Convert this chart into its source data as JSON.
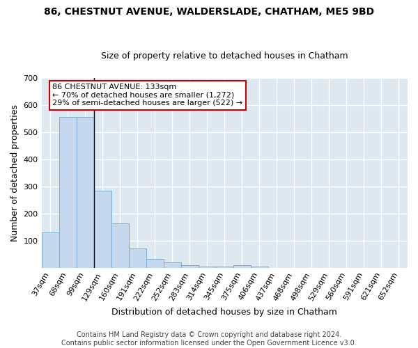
{
  "title": "86, CHESTNUT AVENUE, WALDERSLADE, CHATHAM, ME5 9BD",
  "subtitle": "Size of property relative to detached houses in Chatham",
  "xlabel": "Distribution of detached houses by size in Chatham",
  "ylabel": "Number of detached properties",
  "categories": [
    "37sqm",
    "68sqm",
    "99sqm",
    "129sqm",
    "160sqm",
    "191sqm",
    "222sqm",
    "252sqm",
    "283sqm",
    "314sqm",
    "345sqm",
    "375sqm",
    "406sqm",
    "437sqm",
    "468sqm",
    "498sqm",
    "529sqm",
    "560sqm",
    "591sqm",
    "621sqm",
    "652sqm"
  ],
  "values": [
    130,
    555,
    555,
    283,
    163,
    70,
    32,
    20,
    10,
    5,
    5,
    10,
    5,
    0,
    0,
    0,
    0,
    0,
    0,
    0,
    0
  ],
  "bar_color": "#c5d8ed",
  "bar_edge_color": "#7aaacb",
  "property_line_index": 3,
  "annotation_text": "86 CHESTNUT AVENUE: 133sqm\n← 70% of detached houses are smaller (1,272)\n29% of semi-detached houses are larger (522) →",
  "annotation_box_color": "#ffffff",
  "annotation_box_edge": "#cc0000",
  "ylim": [
    0,
    700
  ],
  "yticks": [
    100,
    200,
    300,
    400,
    500,
    600,
    700
  ],
  "footer_text": "Contains HM Land Registry data © Crown copyright and database right 2024.\nContains public sector information licensed under the Open Government Licence v3.0.",
  "fig_bg_color": "#ffffff",
  "plot_bg_color": "#dde8f0",
  "grid_color": "#ffffff",
  "title_fontsize": 10,
  "subtitle_fontsize": 9,
  "axis_fontsize": 8,
  "footer_fontsize": 7,
  "annotation_fontsize": 8
}
